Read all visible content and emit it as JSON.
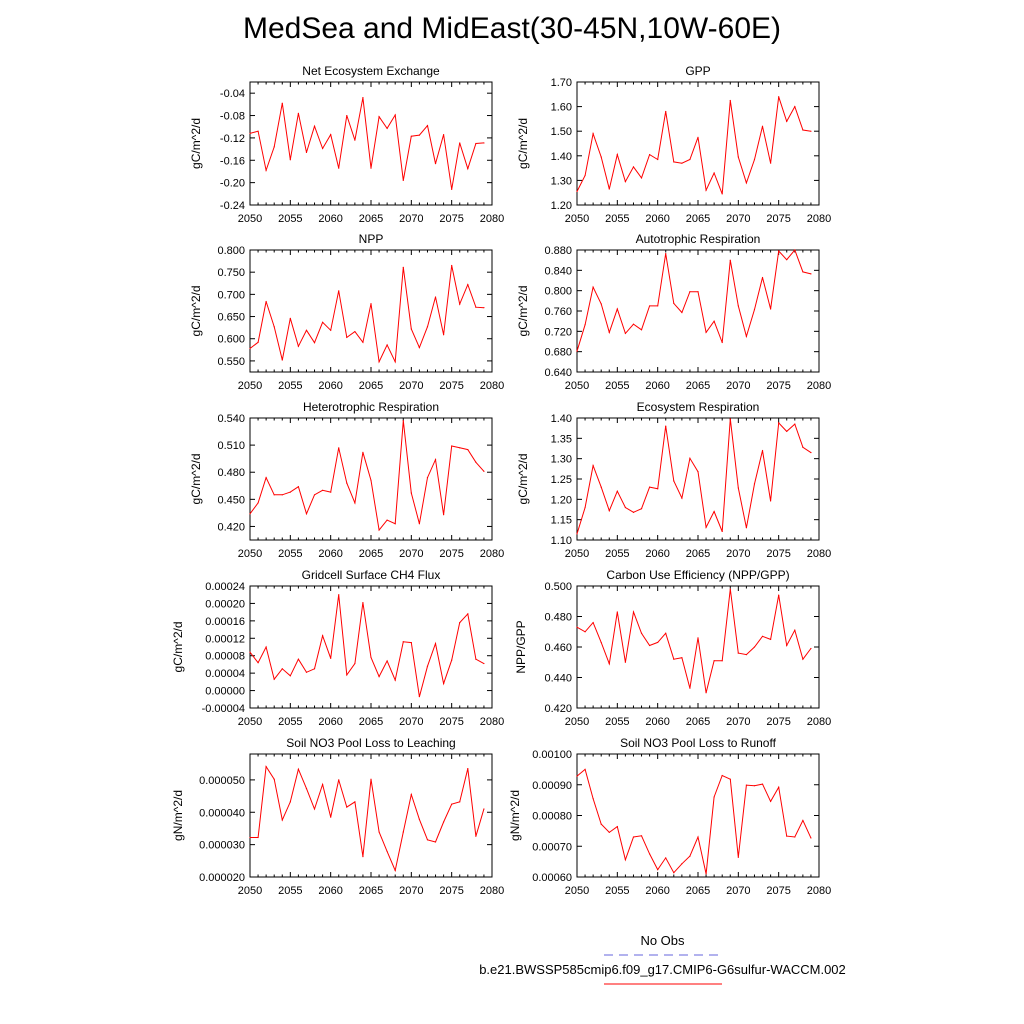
{
  "title": "MedSea and MidEast(30-45N,10W-60E)",
  "legend": {
    "obs_label": "No Obs",
    "obs_color": "#6666dd",
    "run_label": "b.e21.BWSSP585cmip6.f09_g17.CMIP6-G6sulfur-WACCM.002",
    "run_color": "#ff0000"
  },
  "chart_data": [
    {
      "type": "line",
      "title": "Net Ecosystem Exchange",
      "ylabel": "gC/m^2/d",
      "x": [
        2050,
        2051,
        2052,
        2053,
        2054,
        2055,
        2056,
        2057,
        2058,
        2059,
        2060,
        2061,
        2062,
        2063,
        2064,
        2065,
        2066,
        2067,
        2068,
        2069,
        2070,
        2071,
        2072,
        2073,
        2074,
        2075,
        2076,
        2077,
        2078,
        2079
      ],
      "values": [
        -0.112,
        -0.108,
        -0.178,
        -0.136,
        -0.058,
        -0.159,
        -0.076,
        -0.146,
        -0.099,
        -0.139,
        -0.114,
        -0.174,
        -0.08,
        -0.124,
        -0.048,
        -0.174,
        -0.082,
        -0.103,
        -0.079,
        -0.196,
        -0.117,
        -0.115,
        -0.098,
        -0.166,
        -0.114,
        -0.212,
        -0.129,
        -0.175,
        -0.13,
        -0.129
      ],
      "xlim": [
        2050,
        2080
      ],
      "ylim": [
        -0.24,
        -0.02
      ],
      "yticks": [
        -0.04,
        -0.08,
        -0.12,
        -0.16,
        -0.2,
        -0.24
      ],
      "ytick_labels": [
        "-0.04",
        "-0.08",
        "-0.12",
        "-0.16",
        "-0.20",
        "-0.24"
      ],
      "xticks": [
        2050,
        2055,
        2060,
        2065,
        2070,
        2075,
        2080
      ],
      "xtick_labels": [
        "2050",
        "2055",
        "2060",
        "2065",
        "2070",
        "2075",
        "2080"
      ]
    },
    {
      "type": "line",
      "title": "GPP",
      "ylabel": "gC/m^2/d",
      "x": [
        2050,
        2051,
        2052,
        2053,
        2054,
        2055,
        2056,
        2057,
        2058,
        2059,
        2060,
        2061,
        2062,
        2063,
        2064,
        2065,
        2066,
        2067,
        2068,
        2069,
        2070,
        2071,
        2072,
        2073,
        2074,
        2075,
        2076,
        2077,
        2078,
        2079
      ],
      "values": [
        1.255,
        1.32,
        1.49,
        1.395,
        1.265,
        1.405,
        1.295,
        1.355,
        1.31,
        1.405,
        1.385,
        1.58,
        1.375,
        1.37,
        1.385,
        1.475,
        1.26,
        1.33,
        1.245,
        1.625,
        1.395,
        1.29,
        1.385,
        1.52,
        1.37,
        1.64,
        1.54,
        1.6,
        1.505,
        1.5
      ],
      "xlim": [
        2050,
        2080
      ],
      "ylim": [
        1.2,
        1.7
      ],
      "yticks": [
        1.7,
        1.6,
        1.5,
        1.4,
        1.3,
        1.2
      ],
      "ytick_labels": [
        "1.70",
        "1.60",
        "1.50",
        "1.40",
        "1.30",
        "1.20"
      ],
      "xticks": [
        2050,
        2055,
        2060,
        2065,
        2070,
        2075,
        2080
      ],
      "xtick_labels": [
        "2050",
        "2055",
        "2060",
        "2065",
        "2070",
        "2075",
        "2080"
      ]
    },
    {
      "type": "line",
      "title": "NPP",
      "ylabel": "gC/m^2/d",
      "x": [
        2050,
        2051,
        2052,
        2053,
        2054,
        2055,
        2056,
        2057,
        2058,
        2059,
        2060,
        2061,
        2062,
        2063,
        2064,
        2065,
        2066,
        2067,
        2068,
        2069,
        2070,
        2071,
        2072,
        2073,
        2074,
        2075,
        2076,
        2077,
        2078,
        2079
      ],
      "values": [
        0.578,
        0.592,
        0.684,
        0.627,
        0.552,
        0.646,
        0.583,
        0.619,
        0.591,
        0.637,
        0.619,
        0.708,
        0.603,
        0.616,
        0.592,
        0.679,
        0.548,
        0.586,
        0.548,
        0.761,
        0.622,
        0.58,
        0.627,
        0.694,
        0.609,
        0.765,
        0.678,
        0.722,
        0.671,
        0.67
      ],
      "xlim": [
        2050,
        2080
      ],
      "ylim": [
        0.525,
        0.8
      ],
      "yticks": [
        0.8,
        0.75,
        0.7,
        0.65,
        0.6,
        0.55
      ],
      "ytick_labels": [
        "0.800",
        "0.750",
        "0.700",
        "0.650",
        "0.600",
        "0.550"
      ],
      "xticks": [
        2050,
        2055,
        2060,
        2065,
        2070,
        2075,
        2080
      ],
      "xtick_labels": [
        "2050",
        "2055",
        "2060",
        "2065",
        "2070",
        "2075",
        "2080"
      ]
    },
    {
      "type": "line",
      "title": "Autotrophic Respiration",
      "ylabel": "gC/m^2/d",
      "x": [
        2050,
        2051,
        2052,
        2053,
        2054,
        2055,
        2056,
        2057,
        2058,
        2059,
        2060,
        2061,
        2062,
        2063,
        2064,
        2065,
        2066,
        2067,
        2068,
        2069,
        2070,
        2071,
        2072,
        2073,
        2074,
        2075,
        2076,
        2077,
        2078,
        2079
      ],
      "values": [
        0.681,
        0.733,
        0.807,
        0.774,
        0.718,
        0.764,
        0.716,
        0.734,
        0.723,
        0.77,
        0.77,
        0.873,
        0.775,
        0.757,
        0.798,
        0.798,
        0.718,
        0.74,
        0.698,
        0.86,
        0.77,
        0.71,
        0.763,
        0.826,
        0.764,
        0.878,
        0.861,
        0.88,
        0.837,
        0.833
      ],
      "xlim": [
        2050,
        2080
      ],
      "ylim": [
        0.64,
        0.88
      ],
      "yticks": [
        0.88,
        0.84,
        0.8,
        0.76,
        0.72,
        0.68,
        0.64
      ],
      "ytick_labels": [
        "0.880",
        "0.840",
        "0.800",
        "0.760",
        "0.720",
        "0.680",
        "0.640"
      ],
      "xticks": [
        2050,
        2055,
        2060,
        2065,
        2070,
        2075,
        2080
      ],
      "xtick_labels": [
        "2050",
        "2055",
        "2060",
        "2065",
        "2070",
        "2075",
        "2080"
      ]
    },
    {
      "type": "line",
      "title": "Heterotrophic Respiration",
      "ylabel": "gC/m^2/d",
      "x": [
        2050,
        2051,
        2052,
        2053,
        2054,
        2055,
        2056,
        2057,
        2058,
        2059,
        2060,
        2061,
        2062,
        2063,
        2064,
        2065,
        2066,
        2067,
        2068,
        2069,
        2070,
        2071,
        2072,
        2073,
        2074,
        2075,
        2076,
        2077,
        2078,
        2079
      ],
      "values": [
        0.434,
        0.446,
        0.474,
        0.455,
        0.455,
        0.458,
        0.464,
        0.434,
        0.455,
        0.46,
        0.458,
        0.507,
        0.468,
        0.446,
        0.502,
        0.471,
        0.416,
        0.427,
        0.423,
        0.537,
        0.457,
        0.423,
        0.474,
        0.494,
        0.433,
        0.509,
        0.507,
        0.505,
        0.491,
        0.481
      ],
      "xlim": [
        2050,
        2080
      ],
      "ylim": [
        0.405,
        0.54
      ],
      "yticks": [
        0.54,
        0.51,
        0.48,
        0.45,
        0.42
      ],
      "ytick_labels": [
        "0.540",
        "0.510",
        "0.480",
        "0.450",
        "0.420"
      ],
      "xticks": [
        2050,
        2055,
        2060,
        2065,
        2070,
        2075,
        2080
      ],
      "xtick_labels": [
        "2050",
        "2055",
        "2060",
        "2065",
        "2070",
        "2075",
        "2080"
      ]
    },
    {
      "type": "line",
      "title": "Ecosystem Respiration",
      "ylabel": "gC/m^2/d",
      "x": [
        2050,
        2051,
        2052,
        2053,
        2054,
        2055,
        2056,
        2057,
        2058,
        2059,
        2060,
        2061,
        2062,
        2063,
        2064,
        2065,
        2066,
        2067,
        2068,
        2069,
        2070,
        2071,
        2072,
        2073,
        2074,
        2075,
        2076,
        2077,
        2078,
        2079
      ],
      "values": [
        1.115,
        1.18,
        1.283,
        1.23,
        1.172,
        1.22,
        1.18,
        1.168,
        1.177,
        1.23,
        1.226,
        1.38,
        1.245,
        1.203,
        1.301,
        1.268,
        1.131,
        1.17,
        1.121,
        1.398,
        1.228,
        1.13,
        1.238,
        1.32,
        1.196,
        1.388,
        1.367,
        1.385,
        1.328,
        1.315
      ],
      "xlim": [
        2050,
        2080
      ],
      "ylim": [
        1.1,
        1.4
      ],
      "yticks": [
        1.4,
        1.35,
        1.3,
        1.25,
        1.2,
        1.15,
        1.1
      ],
      "ytick_labels": [
        "1.40",
        "1.35",
        "1.30",
        "1.25",
        "1.20",
        "1.15",
        "1.10"
      ],
      "xticks": [
        2050,
        2055,
        2060,
        2065,
        2070,
        2075,
        2080
      ],
      "xtick_labels": [
        "2050",
        "2055",
        "2060",
        "2065",
        "2070",
        "2075",
        "2080"
      ]
    },
    {
      "type": "line",
      "title": "Gridcell Surface CH4 Flux",
      "ylabel": "gC/m^2/d",
      "x": [
        2050,
        2051,
        2052,
        2053,
        2054,
        2055,
        2056,
        2057,
        2058,
        2059,
        2060,
        2061,
        2062,
        2063,
        2064,
        2065,
        2066,
        2067,
        2068,
        2069,
        2070,
        2071,
        2072,
        2073,
        2074,
        2075,
        2076,
        2077,
        2078,
        2079
      ],
      "values": [
        8.8e-05,
        6.4e-05,
        0.0001,
        2.6e-05,
        5e-05,
        3.4e-05,
        7.2e-05,
        4.2e-05,
        5e-05,
        0.000126,
        7.4e-05,
        0.00022,
        3.6e-05,
        6.2e-05,
        0.000202,
        7.6e-05,
        3.2e-05,
        6.8e-05,
        2.4e-05,
        0.000112,
        0.00011,
        -1.4e-05,
        5.6e-05,
        0.000108,
        1.6e-05,
        7e-05,
        0.000156,
        0.000176,
        7.2e-05,
        6.2e-05
      ],
      "xlim": [
        2050,
        2080
      ],
      "ylim": [
        -4e-05,
        0.00024
      ],
      "yticks": [
        0.00024,
        0.0002,
        0.00016,
        0.00012,
        8e-05,
        4e-05,
        0.0,
        -4e-05
      ],
      "ytick_labels": [
        "0.00024",
        "0.00020",
        "0.00016",
        "0.00012",
        "0.00008",
        "0.00004",
        "0.00000",
        "-0.00004"
      ],
      "xticks": [
        2050,
        2055,
        2060,
        2065,
        2070,
        2075,
        2080
      ],
      "xtick_labels": [
        "2050",
        "2055",
        "2060",
        "2065",
        "2070",
        "2075",
        "2080"
      ]
    },
    {
      "type": "line",
      "title": "Carbon Use Efficiency (NPP/GPP)",
      "ylabel": "NPP/GPP",
      "x": [
        2050,
        2051,
        2052,
        2053,
        2054,
        2055,
        2056,
        2057,
        2058,
        2059,
        2060,
        2061,
        2062,
        2063,
        2064,
        2065,
        2066,
        2067,
        2068,
        2069,
        2070,
        2071,
        2072,
        2073,
        2074,
        2075,
        2076,
        2077,
        2078,
        2079
      ],
      "values": [
        0.473,
        0.47,
        0.476,
        0.463,
        0.449,
        0.483,
        0.45,
        0.483,
        0.469,
        0.461,
        0.463,
        0.469,
        0.452,
        0.453,
        0.433,
        0.466,
        0.43,
        0.451,
        0.451,
        0.498,
        0.456,
        0.455,
        0.46,
        0.467,
        0.465,
        0.494,
        0.461,
        0.471,
        0.452,
        0.459
      ],
      "xlim": [
        2050,
        2080
      ],
      "ylim": [
        0.42,
        0.5
      ],
      "yticks": [
        0.5,
        0.48,
        0.46,
        0.44,
        0.42
      ],
      "ytick_labels": [
        "0.500",
        "0.480",
        "0.460",
        "0.440",
        "0.420"
      ],
      "xticks": [
        2050,
        2055,
        2060,
        2065,
        2070,
        2075,
        2080
      ],
      "xtick_labels": [
        "2050",
        "2055",
        "2060",
        "2065",
        "2070",
        "2075",
        "2080"
      ]
    },
    {
      "type": "line",
      "title": "Soil NO3 Pool Loss to Leaching",
      "ylabel": "gN/m^2/d",
      "x": [
        2050,
        2051,
        2052,
        2053,
        2054,
        2055,
        2056,
        2057,
        2058,
        2059,
        2060,
        2061,
        2062,
        2063,
        2064,
        2065,
        2066,
        2067,
        2068,
        2069,
        2070,
        2071,
        2072,
        2073,
        2074,
        2075,
        2076,
        2077,
        2078,
        2079
      ],
      "values": [
        3.22e-05,
        3.22e-05,
        5.41e-05,
        5.02e-05,
        3.76e-05,
        4.32e-05,
        5.33e-05,
        4.73e-05,
        4.1e-05,
        4.86e-05,
        3.85e-05,
        5e-05,
        4.16e-05,
        4.32e-05,
        2.63e-05,
        5.02e-05,
        3.39e-05,
        2.79e-05,
        2.2e-05,
        3.39e-05,
        4.55e-05,
        3.78e-05,
        3.15e-05,
        3.08e-05,
        3.7e-05,
        4.25e-05,
        4.32e-05,
        5.35e-05,
        3.26e-05,
        4.1e-05
      ],
      "xlim": [
        2050,
        2080
      ],
      "ylim": [
        2e-05,
        5.8e-05
      ],
      "yticks": [
        5e-05,
        4e-05,
        3e-05,
        2e-05
      ],
      "ytick_labels": [
        "0.000050",
        "0.000040",
        "0.000030",
        "0.000020"
      ],
      "xticks": [
        2050,
        2055,
        2060,
        2065,
        2070,
        2075,
        2080
      ],
      "xtick_labels": [
        "2050",
        "2055",
        "2060",
        "2065",
        "2070",
        "2075",
        "2080"
      ]
    },
    {
      "type": "line",
      "title": "Soil NO3 Pool Loss to Runoff",
      "ylabel": "gN/m^2/d",
      "x": [
        2050,
        2051,
        2052,
        2053,
        2054,
        2055,
        2056,
        2057,
        2058,
        2059,
        2060,
        2061,
        2062,
        2063,
        2064,
        2065,
        2066,
        2067,
        2068,
        2069,
        2070,
        2071,
        2072,
        2073,
        2074,
        2075,
        2076,
        2077,
        2078,
        2079
      ],
      "values": [
        0.000928,
        0.00095,
        0.000855,
        0.000772,
        0.000745,
        0.000764,
        0.000656,
        0.00073,
        0.000734,
        0.000675,
        0.000624,
        0.000662,
        0.000614,
        0.000643,
        0.000668,
        0.00073,
        0.00061,
        0.00086,
        0.00093,
        0.000918,
        0.000664,
        0.000899,
        0.000897,
        0.000902,
        0.000846,
        0.000892,
        0.000733,
        0.00073,
        0.000784,
        0.000727
      ],
      "xlim": [
        2050,
        2080
      ],
      "ylim": [
        0.0006,
        0.001
      ],
      "yticks": [
        0.001,
        0.0009,
        0.0008,
        0.0007,
        0.0006
      ],
      "ytick_labels": [
        "0.00100",
        "0.00090",
        "0.00080",
        "0.00070",
        "0.00060"
      ],
      "xticks": [
        2050,
        2055,
        2060,
        2065,
        2070,
        2075,
        2080
      ],
      "xtick_labels": [
        "2050",
        "2055",
        "2060",
        "2065",
        "2070",
        "2075",
        "2080"
      ]
    }
  ]
}
